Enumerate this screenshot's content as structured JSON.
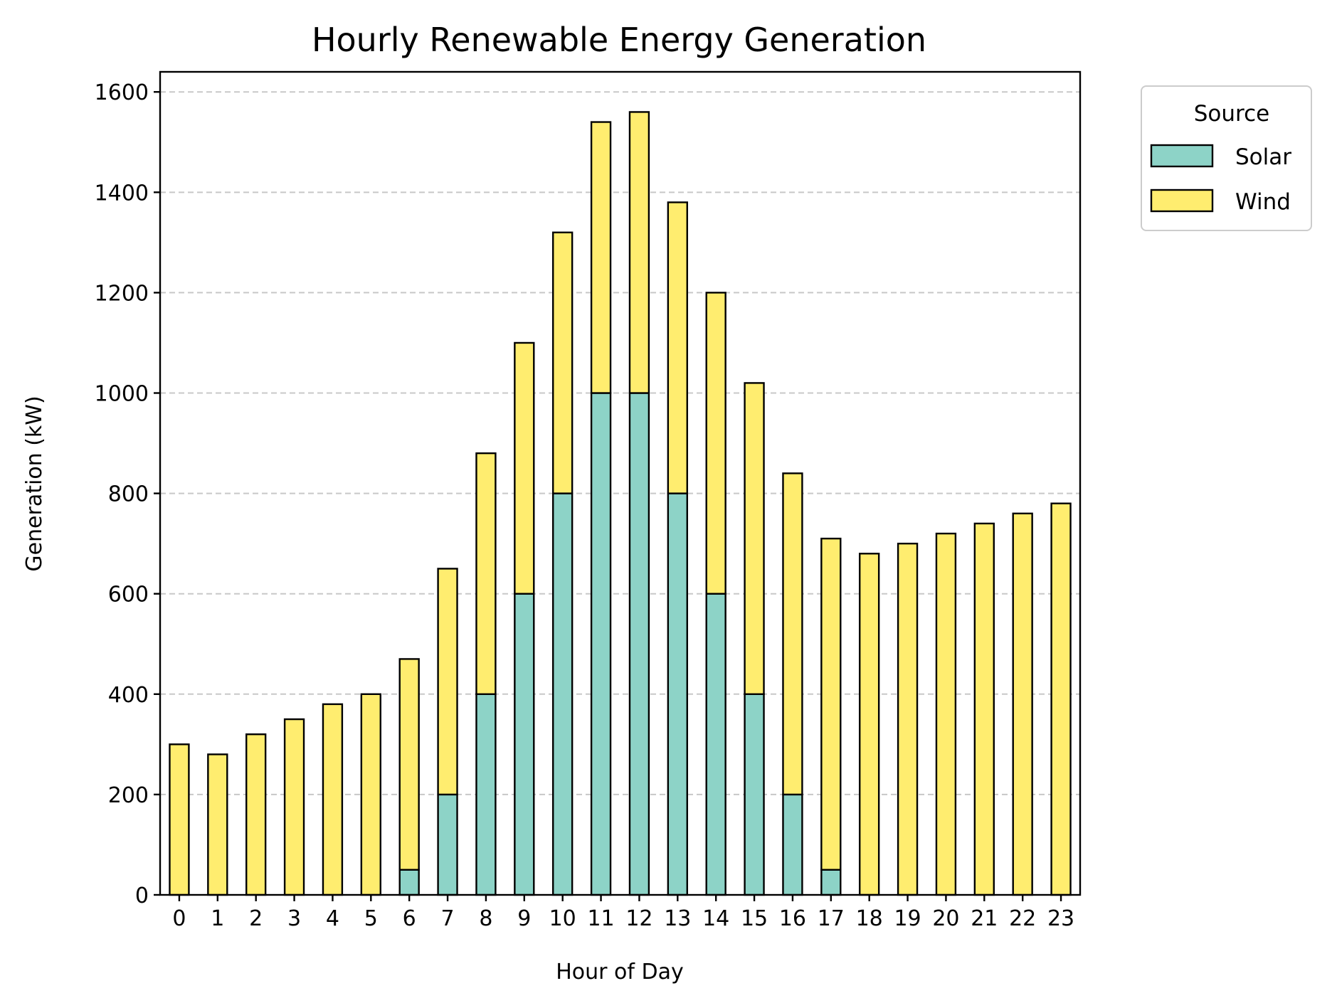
{
  "chart_data": {
    "type": "bar",
    "stacked": true,
    "title": "Hourly Renewable Energy Generation",
    "xlabel": "Hour of Day",
    "ylabel": "Generation (kW)",
    "categories": [
      "0",
      "1",
      "2",
      "3",
      "4",
      "5",
      "6",
      "7",
      "8",
      "9",
      "10",
      "11",
      "12",
      "13",
      "14",
      "15",
      "16",
      "17",
      "18",
      "19",
      "20",
      "21",
      "22",
      "23"
    ],
    "series": [
      {
        "name": "Solar",
        "color": "#8dd3c7",
        "values": [
          0,
          0,
          0,
          0,
          0,
          0,
          50,
          200,
          400,
          600,
          800,
          1000,
          1000,
          800,
          600,
          400,
          200,
          50,
          0,
          0,
          0,
          0,
          0,
          0
        ]
      },
      {
        "name": "Wind",
        "color": "#ffed6f",
        "values": [
          300,
          280,
          320,
          350,
          380,
          400,
          420,
          450,
          480,
          500,
          520,
          540,
          560,
          580,
          600,
          620,
          640,
          660,
          680,
          700,
          720,
          740,
          760,
          780
        ]
      }
    ],
    "ylim": [
      0,
      1640
    ],
    "yticks": [
      0,
      200,
      400,
      600,
      800,
      1000,
      1200,
      1400,
      1600
    ],
    "grid": "y-dashed",
    "legend": {
      "title": "Source",
      "placement": "outside-top-right"
    }
  }
}
